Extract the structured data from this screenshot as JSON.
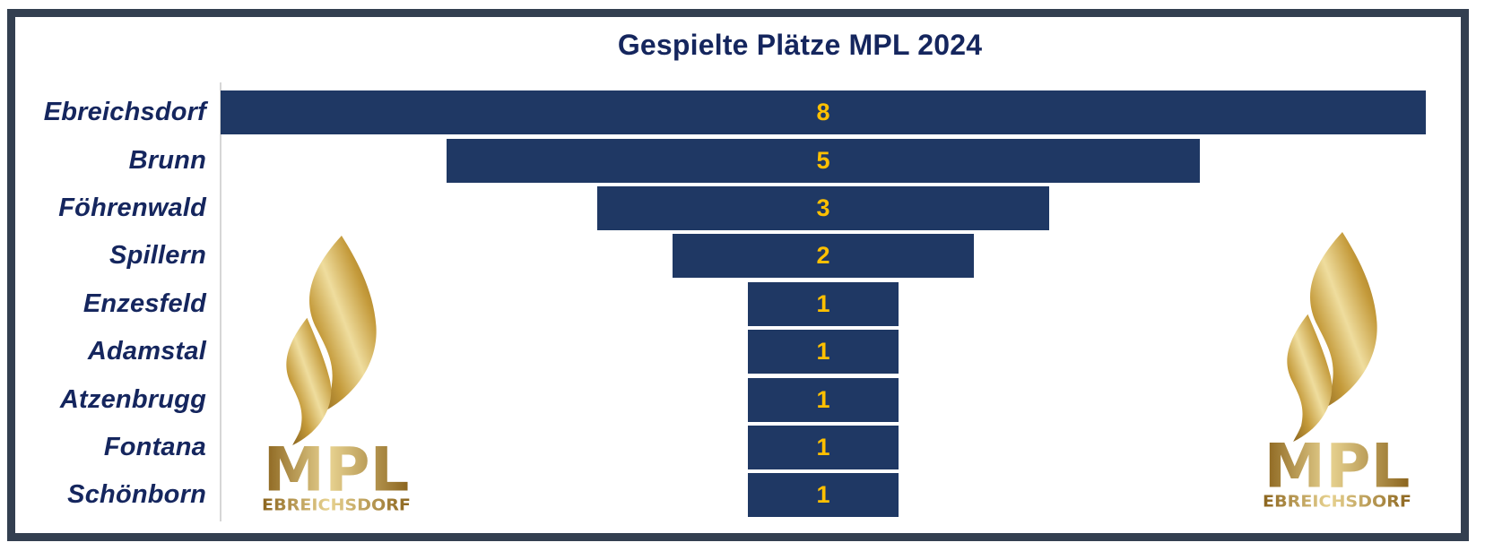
{
  "title": "Gespielte Plätze MPL 2024",
  "chart_data": {
    "type": "bar",
    "subtype": "centered-funnel-horizontal",
    "title": "Gespielte Plätze MPL 2024",
    "categories": [
      "Ebreichsdorf",
      "Brunn",
      "Föhrenwald",
      "Spillern",
      "Enzesfeld",
      "Adamstal",
      "Atzenbrugg",
      "Fontana",
      "Schönborn"
    ],
    "values": [
      8,
      5,
      3,
      2,
      1,
      1,
      1,
      1,
      1
    ],
    "xlim": [
      0,
      8
    ],
    "grid": false,
    "legend": false,
    "value_labels": [
      "8",
      "5",
      "3",
      "2",
      "1",
      "1",
      "1",
      "1",
      "1"
    ],
    "bar_color": "#1F3864",
    "value_label_color": "#FFC000",
    "category_label_color": "#15265E",
    "title_color": "#15265E",
    "axis_line_color": "#D6D6D6",
    "frame_border_color": "#333F50",
    "background_color": "#FFFFFF"
  },
  "logo": {
    "text": "MPL",
    "subtext": "EBREICHSDORF",
    "gold_dark": "#7A5617",
    "gold_mid": "#C49A3A",
    "gold_light": "#EFDD9E"
  }
}
